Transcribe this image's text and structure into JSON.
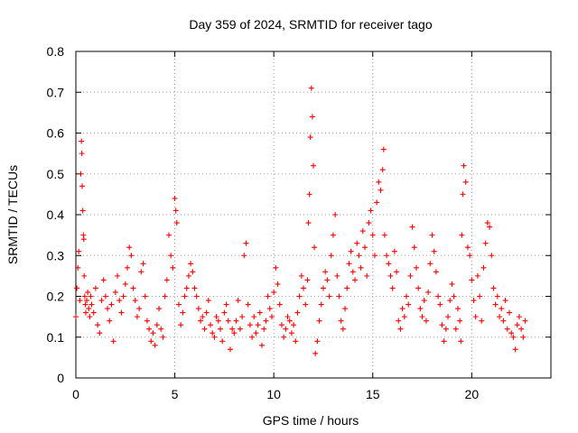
{
  "chart_data": {
    "type": "scatter",
    "title": "Day 359 of 2024, SRMTID for receiver tago",
    "xlabel": "GPS time / hours",
    "ylabel": "SRMTID / TECUs",
    "xlim": [
      0,
      24
    ],
    "ylim": [
      0,
      0.8
    ],
    "xticks": [
      0,
      5,
      10,
      15,
      20
    ],
    "yticks": [
      0,
      0.1,
      0.2,
      0.3,
      0.4,
      0.5,
      0.6,
      0.7,
      0.8
    ],
    "ytick_labels": [
      "0",
      "0.1",
      "0.2",
      "0.3",
      "0.4",
      "0.5",
      "0.6",
      "0.7",
      "0.8"
    ],
    "grid": true,
    "marker": "+",
    "color": "#ff0000",
    "series": [
      {
        "name": "SRMTID",
        "x": [
          0.0,
          0.05,
          0.1,
          0.15,
          0.2,
          0.25,
          0.28,
          0.3,
          0.32,
          0.35,
          0.38,
          0.4,
          0.42,
          0.45,
          0.48,
          0.5,
          0.55,
          0.6,
          0.65,
          0.7,
          0.75,
          0.8,
          0.9,
          1.0,
          1.1,
          1.2,
          1.3,
          1.4,
          1.5,
          1.6,
          1.7,
          1.8,
          1.9,
          2.0,
          2.1,
          2.2,
          2.3,
          2.4,
          2.5,
          2.6,
          2.7,
          2.8,
          2.9,
          3.0,
          3.1,
          3.2,
          3.3,
          3.4,
          3.5,
          3.6,
          3.7,
          3.8,
          3.9,
          4.0,
          4.1,
          4.2,
          4.3,
          4.4,
          4.5,
          4.6,
          4.7,
          4.8,
          4.9,
          5.0,
          5.05,
          5.1,
          5.2,
          5.3,
          5.4,
          5.5,
          5.6,
          5.7,
          5.8,
          5.9,
          6.0,
          6.1,
          6.2,
          6.3,
          6.4,
          6.5,
          6.6,
          6.7,
          6.8,
          6.9,
          7.0,
          7.1,
          7.2,
          7.3,
          7.4,
          7.5,
          7.6,
          7.7,
          7.8,
          7.9,
          8.0,
          8.1,
          8.2,
          8.3,
          8.4,
          8.5,
          8.6,
          8.7,
          8.8,
          8.9,
          9.0,
          9.1,
          9.2,
          9.3,
          9.4,
          9.5,
          9.6,
          9.7,
          9.8,
          9.9,
          10.0,
          10.1,
          10.2,
          10.3,
          10.4,
          10.5,
          10.6,
          10.7,
          10.8,
          10.9,
          11.0,
          11.1,
          11.2,
          11.3,
          11.4,
          11.5,
          11.6,
          11.7,
          11.75,
          11.8,
          11.85,
          11.9,
          11.95,
          12.0,
          12.05,
          12.1,
          12.2,
          12.3,
          12.4,
          12.5,
          12.6,
          12.7,
          12.8,
          12.9,
          13.0,
          13.1,
          13.2,
          13.3,
          13.4,
          13.5,
          13.6,
          13.7,
          13.8,
          13.9,
          14.0,
          14.1,
          14.2,
          14.3,
          14.4,
          14.5,
          14.6,
          14.7,
          14.8,
          14.9,
          15.0,
          15.1,
          15.2,
          15.3,
          15.4,
          15.5,
          15.55,
          15.6,
          15.7,
          15.8,
          15.9,
          16.0,
          16.1,
          16.2,
          16.3,
          16.4,
          16.5,
          16.6,
          16.7,
          16.8,
          16.9,
          17.0,
          17.1,
          17.2,
          17.3,
          17.4,
          17.5,
          17.6,
          17.7,
          17.8,
          17.9,
          18.0,
          18.1,
          18.2,
          18.3,
          18.4,
          18.5,
          18.6,
          18.7,
          18.8,
          18.9,
          19.0,
          19.1,
          19.2,
          19.3,
          19.4,
          19.45,
          19.5,
          19.55,
          19.6,
          19.7,
          19.8,
          19.9,
          20.0,
          20.1,
          20.2,
          20.3,
          20.4,
          20.5,
          20.6,
          20.7,
          20.8,
          20.9,
          21.0,
          21.1,
          21.2,
          21.3,
          21.4,
          21.5,
          21.6,
          21.7,
          21.8,
          21.9,
          22.0,
          22.1,
          22.2,
          22.3,
          22.4,
          22.5,
          22.6,
          22.7
        ],
        "y": [
          0.15,
          0.22,
          0.27,
          0.31,
          0.19,
          0.5,
          0.58,
          0.55,
          0.47,
          0.41,
          0.35,
          0.34,
          0.25,
          0.2,
          0.18,
          0.16,
          0.19,
          0.21,
          0.17,
          0.15,
          0.2,
          0.18,
          0.16,
          0.22,
          0.13,
          0.11,
          0.19,
          0.24,
          0.2,
          0.17,
          0.14,
          0.18,
          0.09,
          0.21,
          0.25,
          0.19,
          0.16,
          0.2,
          0.23,
          0.27,
          0.32,
          0.3,
          0.22,
          0.19,
          0.15,
          0.17,
          0.26,
          0.28,
          0.2,
          0.14,
          0.12,
          0.09,
          0.11,
          0.08,
          0.13,
          0.17,
          0.12,
          0.1,
          0.2,
          0.24,
          0.35,
          0.3,
          0.27,
          0.44,
          0.41,
          0.38,
          0.18,
          0.13,
          0.16,
          0.2,
          0.22,
          0.25,
          0.28,
          0.26,
          0.22,
          0.2,
          0.17,
          0.14,
          0.15,
          0.12,
          0.16,
          0.19,
          0.13,
          0.11,
          0.1,
          0.15,
          0.14,
          0.12,
          0.09,
          0.16,
          0.18,
          0.14,
          0.07,
          0.12,
          0.11,
          0.14,
          0.19,
          0.12,
          0.15,
          0.3,
          0.33,
          0.18,
          0.13,
          0.1,
          0.15,
          0.11,
          0.13,
          0.16,
          0.08,
          0.12,
          0.14,
          0.2,
          0.17,
          0.15,
          0.21,
          0.27,
          0.23,
          0.18,
          0.13,
          0.1,
          0.12,
          0.15,
          0.14,
          0.11,
          0.13,
          0.09,
          0.16,
          0.2,
          0.25,
          0.22,
          0.18,
          0.24,
          0.38,
          0.45,
          0.59,
          0.71,
          0.64,
          0.52,
          0.32,
          0.06,
          0.09,
          0.14,
          0.18,
          0.22,
          0.26,
          0.24,
          0.2,
          0.3,
          0.35,
          0.4,
          0.25,
          0.2,
          0.14,
          0.12,
          0.17,
          0.22,
          0.28,
          0.31,
          0.26,
          0.24,
          0.33,
          0.3,
          0.27,
          0.36,
          0.32,
          0.25,
          0.38,
          0.41,
          0.35,
          0.3,
          0.43,
          0.48,
          0.46,
          0.51,
          0.56,
          0.35,
          0.3,
          0.28,
          0.25,
          0.22,
          0.31,
          0.26,
          0.14,
          0.12,
          0.17,
          0.15,
          0.2,
          0.18,
          0.25,
          0.37,
          0.32,
          0.27,
          0.22,
          0.17,
          0.15,
          0.19,
          0.14,
          0.21,
          0.28,
          0.35,
          0.31,
          0.26,
          0.2,
          0.18,
          0.13,
          0.09,
          0.12,
          0.15,
          0.19,
          0.23,
          0.2,
          0.12,
          0.17,
          0.14,
          0.09,
          0.35,
          0.45,
          0.52,
          0.48,
          0.32,
          0.3,
          0.24,
          0.19,
          0.15,
          0.25,
          0.2,
          0.14,
          0.27,
          0.33,
          0.38,
          0.37,
          0.3,
          0.22,
          0.18,
          0.2,
          0.15,
          0.17,
          0.14,
          0.19,
          0.12,
          0.16,
          0.11,
          0.1,
          0.07,
          0.13,
          0.15,
          0.12,
          0.1,
          0.14
        ]
      }
    ]
  }
}
